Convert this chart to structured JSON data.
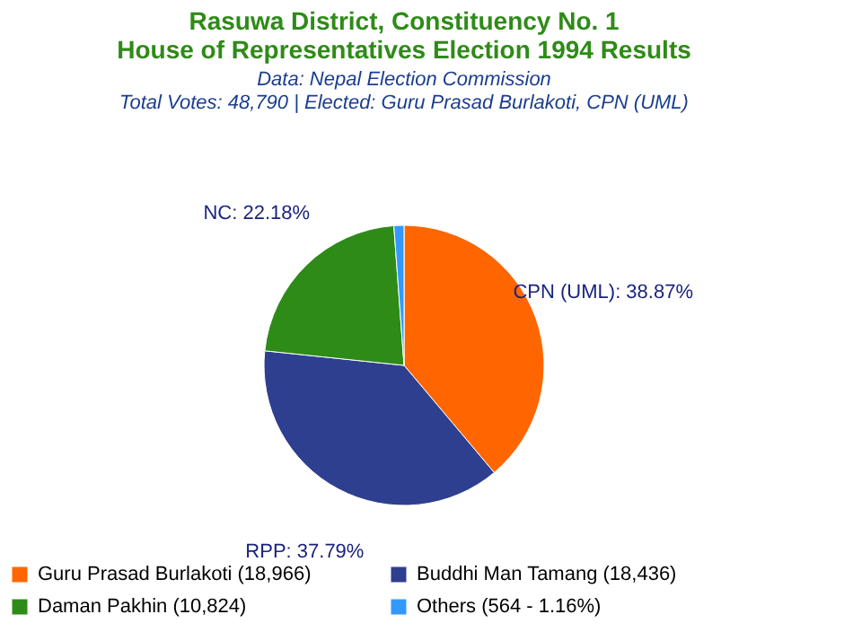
{
  "chart_data": {
    "type": "pie",
    "title": "Rasuwa District, Constituency No. 1\nHouse of Representatives Election 1994 Results",
    "subtitle": "Data: Nepal Election Commission\n\nTotal Votes: 48,790 | Elected: Guru Prasad Burlakoti, CPN (UML)",
    "categories": [
      "Guru Prasad Burlakoti (18,966)",
      "Buddhi Man Tamang (18,436)",
      "Daman Pakhin (10,824)",
      "Others (564 - 1.16%)"
    ],
    "values": [
      38.87,
      37.79,
      22.18,
      1.16
    ],
    "colors": [
      "#ff6600",
      "#2e3f8f",
      "#2e8b17",
      "#3399ff"
    ],
    "value_labels": [
      "CPN (UML): 38.87%",
      "RPP: 37.79%",
      "NC: 22.18%",
      null
    ],
    "legend": "bottom"
  }
}
